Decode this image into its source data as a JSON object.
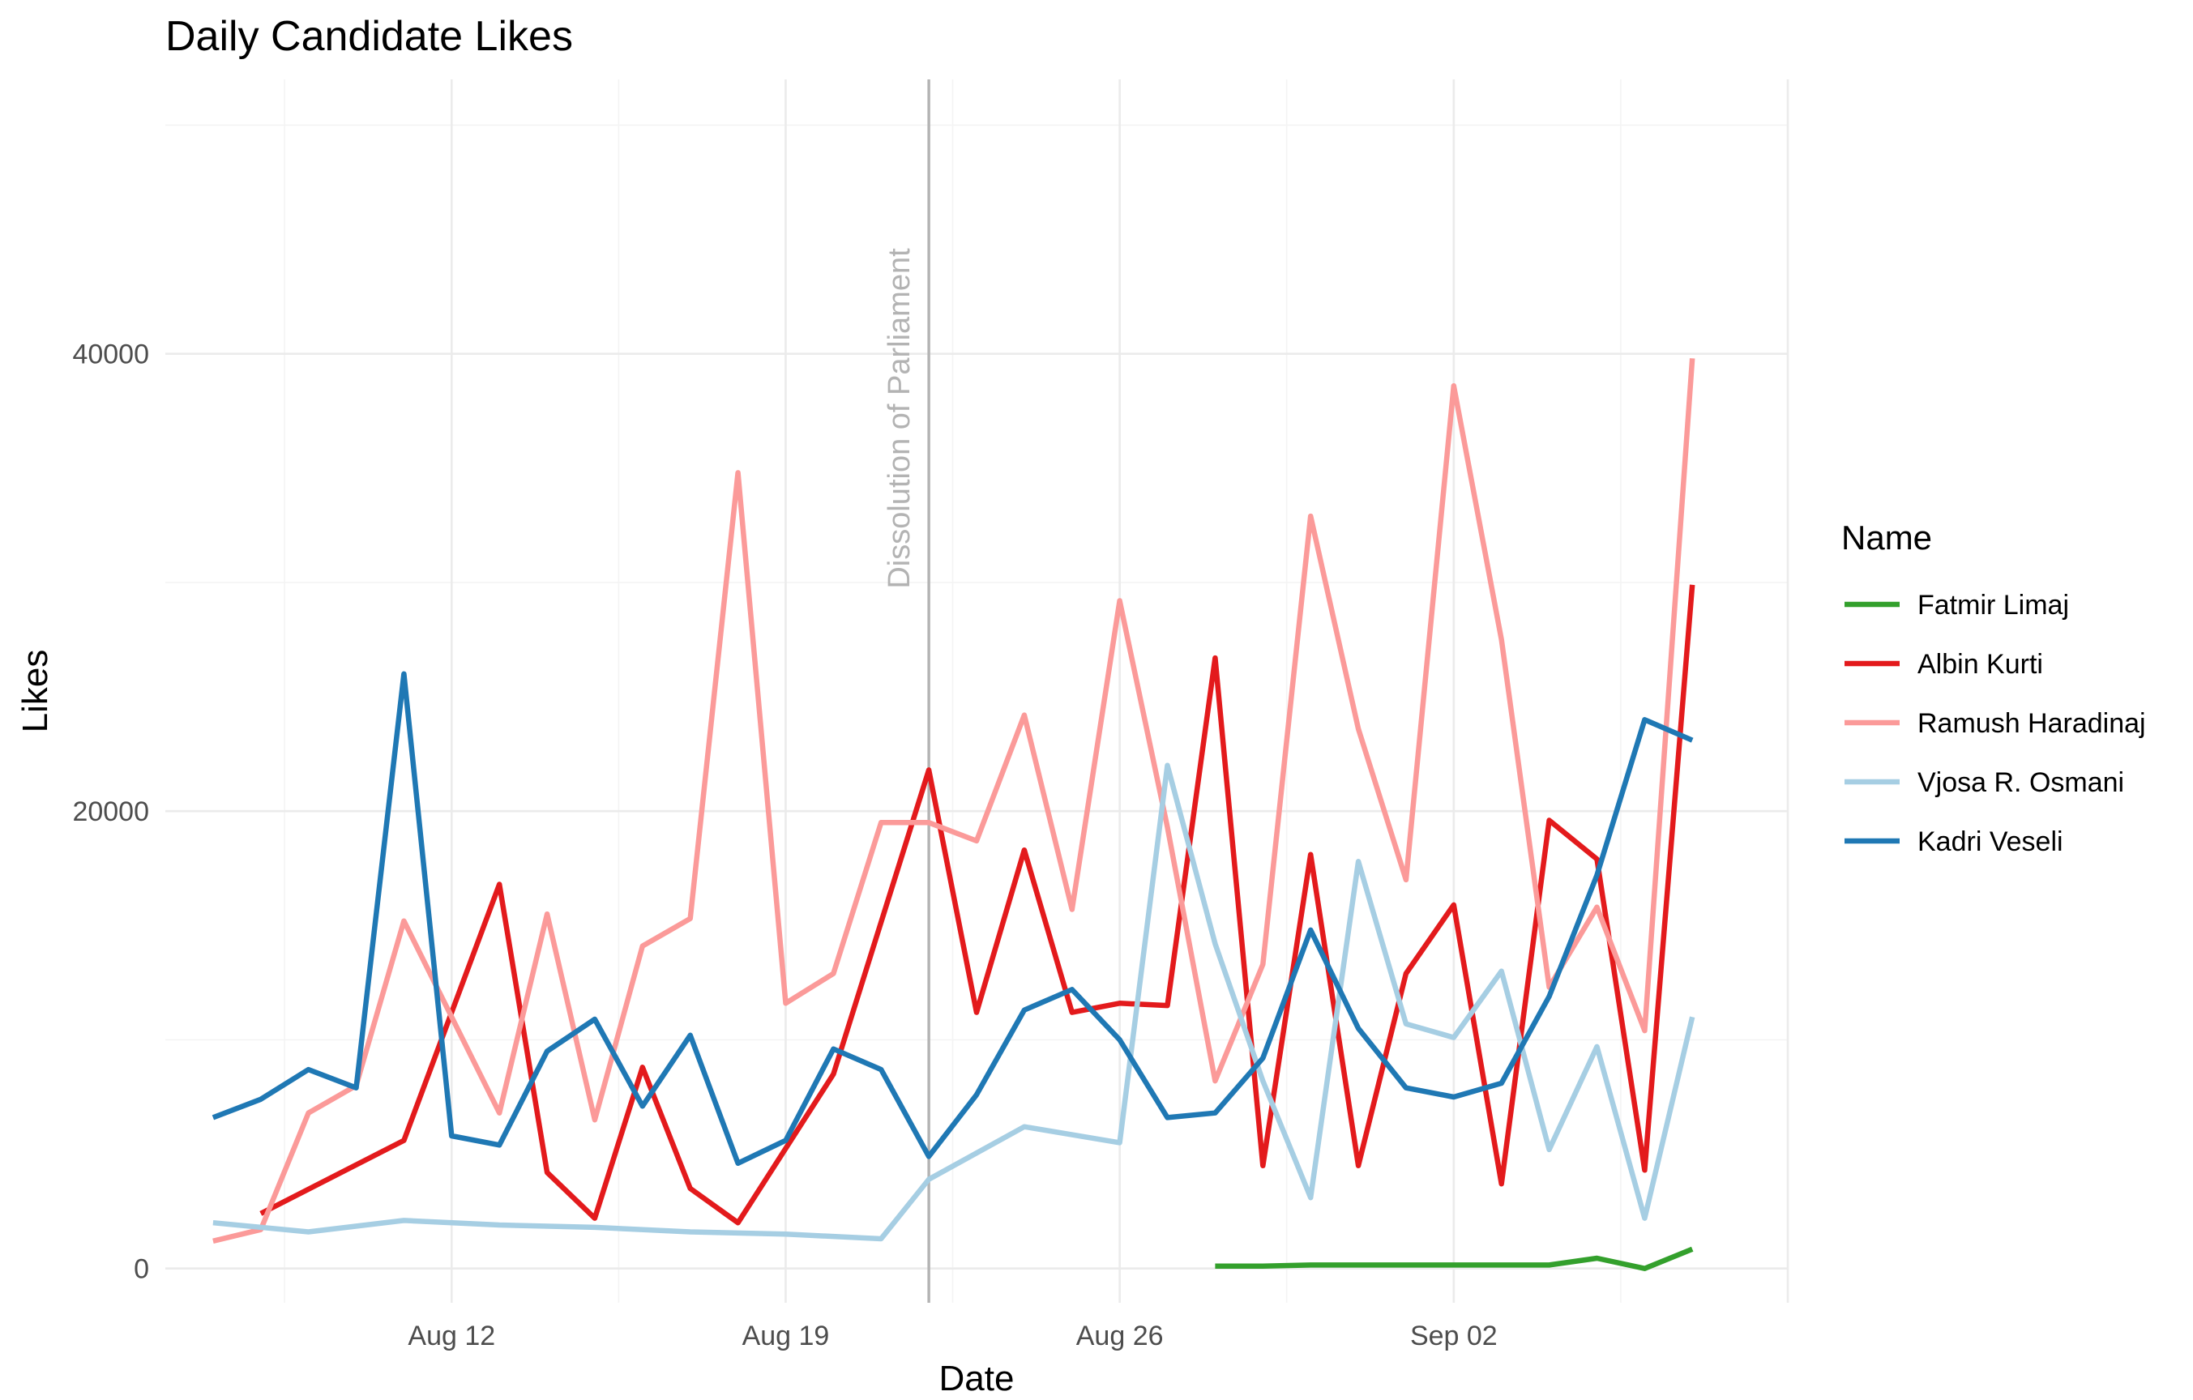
{
  "chart_data": {
    "type": "line",
    "title": "Daily Candidate Likes",
    "xlabel": "Date",
    "ylabel": "Likes",
    "xlim": [
      "2019-08-06",
      "2019-09-09"
    ],
    "ylim": [
      -1500,
      52000
    ],
    "y_ticks": [
      0,
      20000,
      40000
    ],
    "x_ticks": [
      {
        "date": "2019-08-12",
        "label": "Aug 12"
      },
      {
        "date": "2019-08-19",
        "label": "Aug 19"
      },
      {
        "date": "2019-08-26",
        "label": "Aug 26"
      },
      {
        "date": "2019-09-02",
        "label": "Sep 02"
      }
    ],
    "grid": true,
    "legend": {
      "title": "Name",
      "position": "right"
    },
    "annotation": {
      "date": "2019-08-22",
      "text": "Dissolution of Parliament"
    },
    "series": [
      {
        "name": "Fatmir Limaj",
        "color": "#33a02c",
        "dates": [
          "2019-08-28",
          "2019-08-29",
          "2019-08-30",
          "2019-08-31",
          "2019-09-01",
          "2019-09-02",
          "2019-09-03",
          "2019-09-04",
          "2019-09-05",
          "2019-09-06",
          "2019-09-07"
        ],
        "values": [
          100,
          100,
          150,
          150,
          150,
          150,
          150,
          150,
          450,
          0,
          850
        ]
      },
      {
        "name": "Albin Kurti",
        "color": "#e31a1c",
        "dates": [
          "2019-08-08",
          "2019-08-11",
          "2019-08-13",
          "2019-08-14",
          "2019-08-15",
          "2019-08-16",
          "2019-08-17",
          "2019-08-18",
          "2019-08-20",
          "2019-08-22",
          "2019-08-23",
          "2019-08-24",
          "2019-08-25",
          "2019-08-26",
          "2019-08-27",
          "2019-08-28",
          "2019-08-29",
          "2019-08-30",
          "2019-08-31",
          "2019-09-01",
          "2019-09-02",
          "2019-09-03",
          "2019-09-04",
          "2019-09-05",
          "2019-09-06",
          "2019-09-07"
        ],
        "values": [
          2400,
          5600,
          16800,
          4200,
          2200,
          8800,
          3500,
          2000,
          8500,
          21800,
          11200,
          18300,
          11200,
          11600,
          11500,
          26700,
          4500,
          18100,
          4500,
          12900,
          15900,
          3700,
          19600,
          17900,
          4300,
          29900
        ]
      },
      {
        "name": "Ramush Haradinaj",
        "color": "#fb9a99",
        "dates": [
          "2019-08-07",
          "2019-08-08",
          "2019-08-09",
          "2019-08-10",
          "2019-08-11",
          "2019-08-12",
          "2019-08-13",
          "2019-08-14",
          "2019-08-15",
          "2019-08-16",
          "2019-08-17",
          "2019-08-18",
          "2019-08-19",
          "2019-08-20",
          "2019-08-21",
          "2019-08-22",
          "2019-08-23",
          "2019-08-24",
          "2019-08-25",
          "2019-08-26",
          "2019-08-27",
          "2019-08-28",
          "2019-08-29",
          "2019-08-30",
          "2019-08-31",
          "2019-09-01",
          "2019-09-02",
          "2019-09-03",
          "2019-09-04",
          "2019-09-05",
          "2019-09-06",
          "2019-09-07"
        ],
        "values": [
          1200,
          1700,
          6800,
          8000,
          15200,
          11000,
          6800,
          15500,
          6500,
          14100,
          15300,
          34800,
          11600,
          12900,
          19500,
          19500,
          18700,
          24200,
          15700,
          29200,
          19300,
          8200,
          13300,
          32900,
          23600,
          17000,
          38600,
          27500,
          12300,
          15800,
          10400,
          39800
        ]
      },
      {
        "name": "Vjosa R. Osmani",
        "color": "#a6cee3",
        "dates": [
          "2019-08-07",
          "2019-08-09",
          "2019-08-11",
          "2019-08-13",
          "2019-08-15",
          "2019-08-17",
          "2019-08-19",
          "2019-08-21",
          "2019-08-22",
          "2019-08-24",
          "2019-08-26",
          "2019-08-27",
          "2019-08-28",
          "2019-08-29",
          "2019-08-30",
          "2019-08-31",
          "2019-09-01",
          "2019-09-02",
          "2019-09-03",
          "2019-09-04",
          "2019-09-05",
          "2019-09-06",
          "2019-09-07"
        ],
        "values": [
          2000,
          1600,
          2100,
          1900,
          1800,
          1600,
          1500,
          1300,
          3900,
          6200,
          5500,
          22000,
          14200,
          8200,
          3100,
          17800,
          10700,
          10100,
          13000,
          5200,
          9700,
          2200,
          11000
        ]
      },
      {
        "name": "Kadri Veseli",
        "color": "#1f78b4",
        "dates": [
          "2019-08-07",
          "2019-08-08",
          "2019-08-09",
          "2019-08-10",
          "2019-08-11",
          "2019-08-12",
          "2019-08-13",
          "2019-08-14",
          "2019-08-15",
          "2019-08-16",
          "2019-08-17",
          "2019-08-18",
          "2019-08-19",
          "2019-08-20",
          "2019-08-21",
          "2019-08-22",
          "2019-08-23",
          "2019-08-24",
          "2019-08-25",
          "2019-08-26",
          "2019-08-27",
          "2019-08-28",
          "2019-08-29",
          "2019-08-30",
          "2019-08-31",
          "2019-09-01",
          "2019-09-02",
          "2019-09-03",
          "2019-09-04",
          "2019-09-05",
          "2019-09-06",
          "2019-09-07"
        ],
        "values": [
          6600,
          7400,
          8700,
          7900,
          26000,
          5800,
          5400,
          9500,
          10900,
          7100,
          10200,
          4600,
          5600,
          9600,
          8700,
          4900,
          7600,
          11300,
          12200,
          10000,
          6600,
          6800,
          9200,
          14800,
          10500,
          7900,
          7500,
          8100,
          11900,
          17200,
          24000,
          23100
        ]
      }
    ]
  }
}
